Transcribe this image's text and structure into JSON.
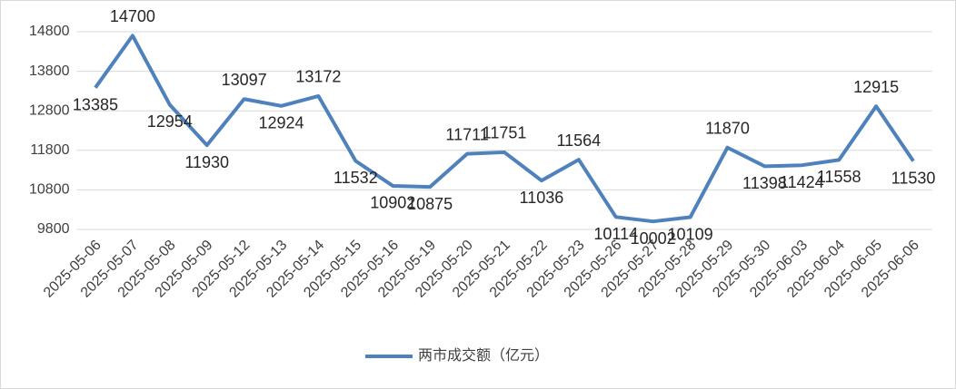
{
  "chart_data": {
    "type": "line",
    "categories": [
      "2025-05-06",
      "2025-05-07",
      "2025-05-08",
      "2025-05-09",
      "2025-05-12",
      "2025-05-13",
      "2025-05-14",
      "2025-05-15",
      "2025-05-16",
      "2025-05-19",
      "2025-05-20",
      "2025-05-21",
      "2025-05-22",
      "2025-05-23",
      "2025-05-26",
      "2025-05-27",
      "2025-05-28",
      "2025-05-29",
      "2025-05-30",
      "2025-06-03",
      "2025-06-04",
      "2025-06-05",
      "2025-06-06"
    ],
    "series": [
      {
        "name": "两市成交额（亿元）",
        "color": "#4f81bd",
        "values": [
          13385,
          14700,
          12954,
          11930,
          13097,
          12924,
          13172,
          11532,
          10902,
          10875,
          11711,
          11751,
          11036,
          11564,
          10114,
          10002,
          10109,
          11870,
          11398,
          11424,
          11558,
          12915,
          11530
        ]
      }
    ],
    "ylim": [
      9800,
      14800
    ],
    "yticks": [
      9800,
      10800,
      11800,
      12800,
      13800,
      14800
    ],
    "grid": true,
    "legend": "bottom"
  }
}
